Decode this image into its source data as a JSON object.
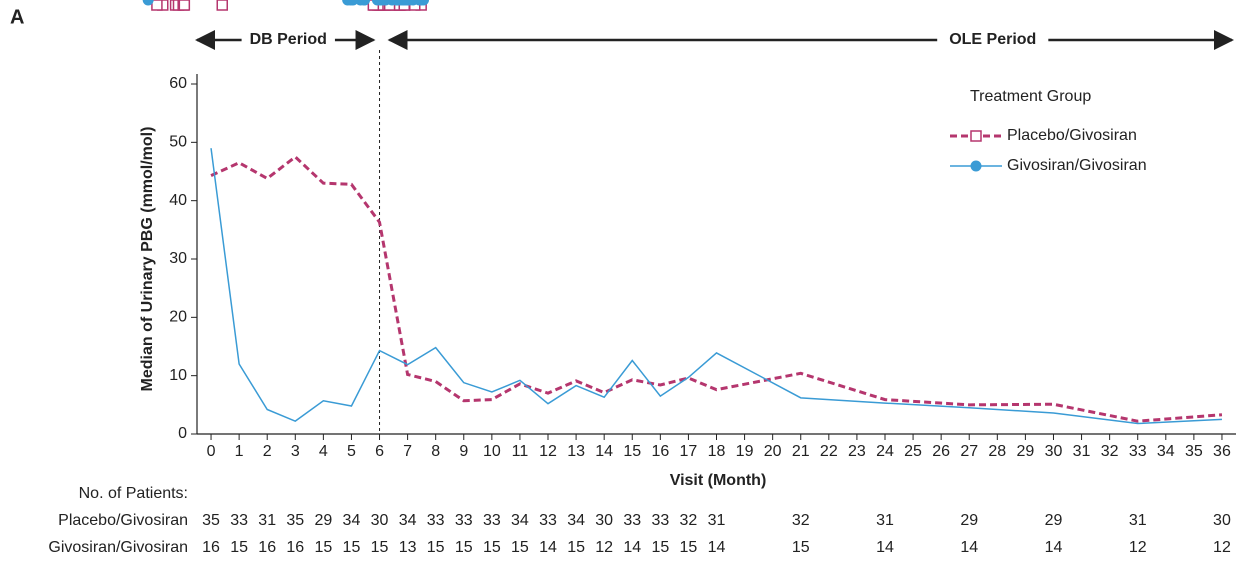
{
  "chart_data": {
    "type": "line",
    "panel_label": "A",
    "period_labels": [
      "DB Period",
      "OLE Period"
    ],
    "period_divider": 6,
    "x_label": "Visit (Month)",
    "y_label": "Median of Urinary PBG (mmol/mol)",
    "legend_title": "Treatment Group",
    "x": [
      0,
      1,
      2,
      3,
      4,
      5,
      6,
      7,
      8,
      9,
      10,
      11,
      12,
      13,
      14,
      15,
      16,
      17,
      18,
      21,
      24,
      27,
      30,
      33,
      36
    ],
    "series": [
      {
        "name": "Placebo/Givosiran",
        "color": "#b5366e",
        "dashed": true,
        "marker": "open-square",
        "values": [
          44.3,
          46.5,
          43.8,
          47.5,
          43,
          42.8,
          36.3,
          10.2,
          9,
          5.7,
          5.9,
          8.6,
          7,
          9.1,
          7.1,
          9.3,
          8.4,
          9.6,
          7.6,
          10.4,
          5.9,
          5,
          5.1,
          2.2,
          3.3
        ]
      },
      {
        "name": "Givosiran/Givosiran",
        "color": "#3a9bd5",
        "dashed": false,
        "marker": "filled-circle",
        "values": [
          49,
          12,
          4.2,
          2.2,
          5.7,
          4.8,
          14.3,
          11.9,
          14.8,
          8.8,
          7.2,
          9.2,
          5.2,
          8.3,
          6.3,
          12.6,
          6.5,
          9.7,
          13.9,
          6.2,
          5.3,
          4.5,
          3.6,
          1.8,
          2.5
        ]
      }
    ],
    "xlim": [
      -0.5,
      36.5
    ],
    "xticks": [
      0,
      1,
      2,
      3,
      4,
      5,
      6,
      7,
      8,
      9,
      10,
      11,
      12,
      13,
      14,
      15,
      16,
      17,
      18,
      19,
      20,
      21,
      22,
      23,
      24,
      25,
      26,
      27,
      28,
      29,
      30,
      31,
      32,
      33,
      34,
      35,
      36
    ],
    "ylim": [
      0,
      60
    ],
    "yticks": [
      0,
      10,
      20,
      30,
      40,
      50,
      60
    ],
    "patients": {
      "title": "No. of Patients:",
      "counts": [
        [
          35,
          33,
          31,
          35,
          29,
          34,
          30,
          34,
          33,
          33,
          33,
          34,
          33,
          34,
          30,
          33,
          33,
          32,
          31,
          32,
          31,
          29,
          29,
          31,
          30
        ],
        [
          16,
          15,
          16,
          16,
          15,
          15,
          15,
          13,
          15,
          15,
          15,
          15,
          14,
          15,
          12,
          14,
          15,
          15,
          14,
          15,
          14,
          14,
          14,
          12,
          12
        ]
      ]
    }
  }
}
